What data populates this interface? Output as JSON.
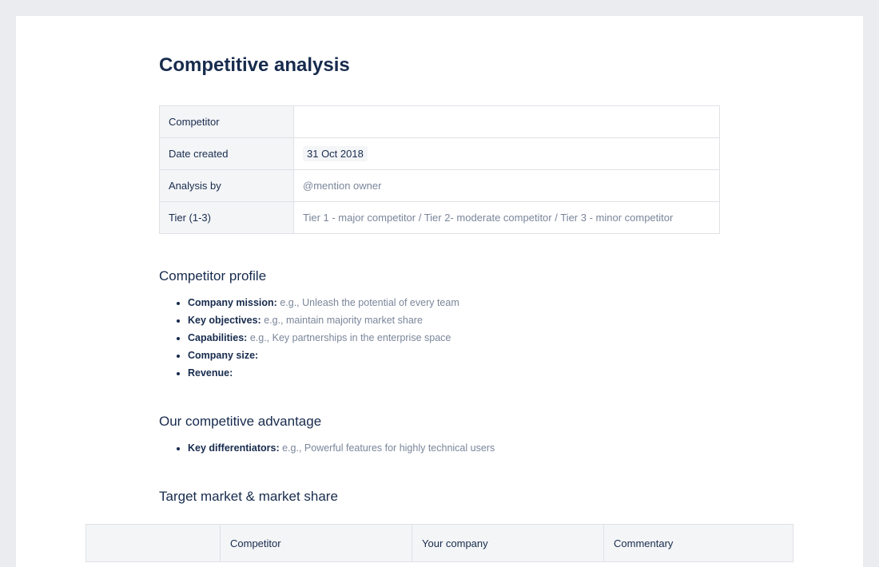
{
  "title": "Competitive analysis",
  "meta": [
    {
      "key": "Competitor",
      "value": ""
    },
    {
      "key": "Date created",
      "value": "31 Oct 2018"
    },
    {
      "key": "Analysis by",
      "value": "@mention owner"
    },
    {
      "key": "Tier (1-3)",
      "value": "Tier 1 - major competitor / Tier 2- moderate competitor / Tier 3 - minor competitor"
    }
  ],
  "profile": {
    "heading": "Competitor profile",
    "items": [
      {
        "label": "Company mission:",
        "hint": "e.g., Unleash the potential of every team"
      },
      {
        "label": "Key objectives:",
        "hint": "e.g., maintain majority market share"
      },
      {
        "label": "Capabilities:",
        "hint": "e.g., Key partnerships in the enterprise space"
      },
      {
        "label": "Company size:",
        "hint": ""
      },
      {
        "label": "Revenue:",
        "hint": ""
      }
    ]
  },
  "advantage": {
    "heading": "Our competitive advantage",
    "items": [
      {
        "label": "Key differentiators:",
        "hint": "e.g., Powerful features for highly technical users"
      }
    ]
  },
  "market": {
    "heading": "Target market & market share",
    "columns": [
      "",
      "Competitor",
      "Your company",
      "Commentary"
    ]
  }
}
